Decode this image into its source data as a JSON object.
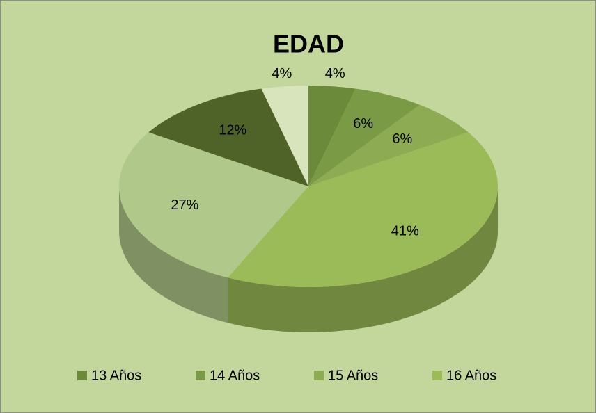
{
  "chart_data": {
    "type": "pie3d",
    "title": "EDAD",
    "categories": [
      "13 Años",
      "14 Años",
      "15 Años",
      "16 Años",
      null,
      null,
      null
    ],
    "values": [
      4,
      6,
      6,
      41,
      27,
      12,
      4
    ],
    "value_labels": [
      "4%",
      "6%",
      "6%",
      "41%",
      "27%",
      "12%",
      "4%"
    ],
    "colors": [
      "#6b8a3a",
      "#7b9a45",
      "#8cab52",
      "#9bbb59",
      "#b0c98a",
      "#4f6228",
      "#d8e4bc"
    ],
    "legend": "bottom"
  }
}
